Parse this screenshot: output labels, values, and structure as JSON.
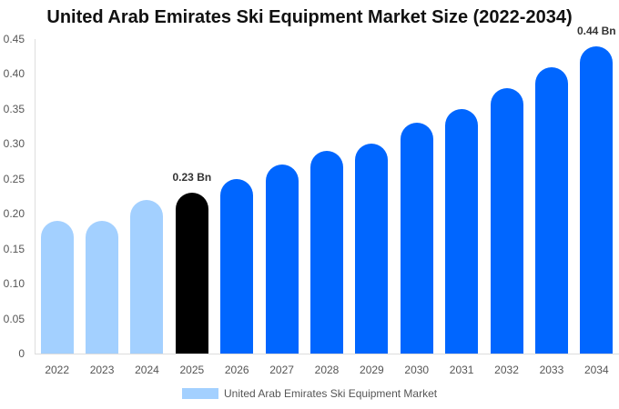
{
  "chart_data": {
    "type": "bar",
    "title": "United Arab Emirates Ski Equipment Market Size (2022-2034)",
    "xlabel": "",
    "ylabel": "",
    "ylim": [
      0,
      0.45
    ],
    "yticks": [
      "0",
      "0.05",
      "0.10",
      "0.15",
      "0.20",
      "0.25",
      "0.30",
      "0.35",
      "0.40",
      "0.45"
    ],
    "grid": false,
    "legend_position": "bottom",
    "categories": [
      "2022",
      "2023",
      "2024",
      "2025",
      "2026",
      "2027",
      "2028",
      "2029",
      "2030",
      "2031",
      "2032",
      "2033",
      "2034"
    ],
    "series": [
      {
        "name": "United Arab Emirates Ski Equipment Market",
        "values": [
          0.19,
          0.19,
          0.22,
          0.23,
          0.25,
          0.27,
          0.29,
          0.3,
          0.33,
          0.35,
          0.38,
          0.41,
          0.44
        ]
      }
    ],
    "bar_colors": [
      "#a3d0ff",
      "#a3d0ff",
      "#a3d0ff",
      "#000000",
      "#0066ff",
      "#0066ff",
      "#0066ff",
      "#0066ff",
      "#0066ff",
      "#0066ff",
      "#0066ff",
      "#0066ff",
      "#0066ff"
    ],
    "annotations": [
      {
        "category": "2025",
        "text": "0.23 Bn"
      },
      {
        "category": "2034",
        "text": "0.44 Bn"
      }
    ],
    "legend": {
      "label": "United Arab Emirates Ski Equipment Market",
      "color": "#a3d0ff"
    }
  }
}
